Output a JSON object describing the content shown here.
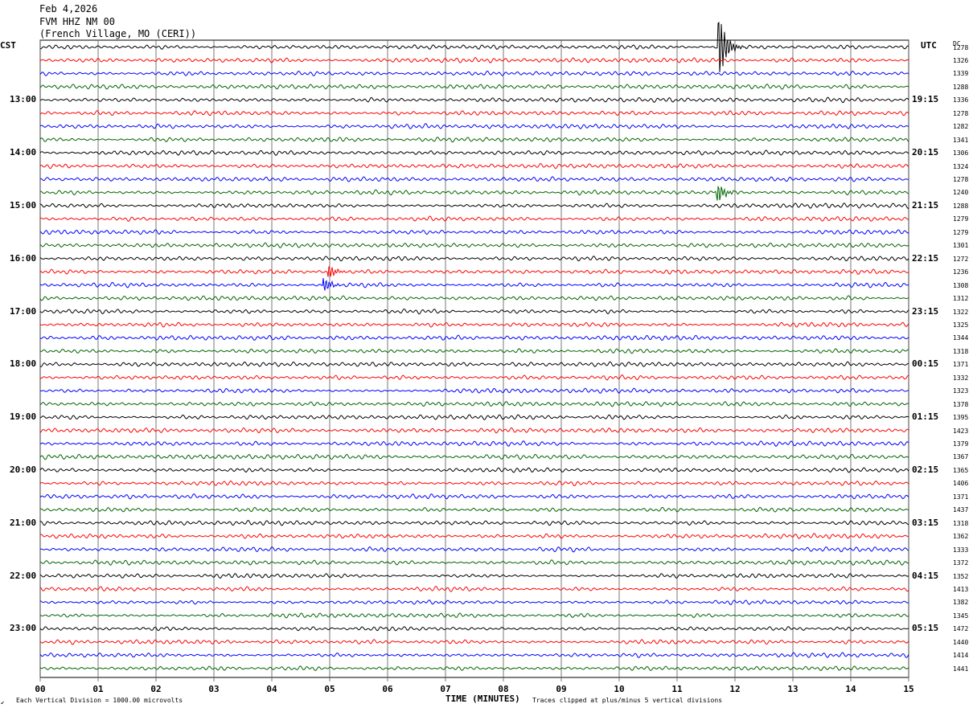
{
  "header": {
    "date": "Feb 4,2026",
    "station": "FVM HHZ NM 00",
    "location": "(French Village, MO (CERI))"
  },
  "left_label": "CST",
  "right_label": "UTC",
  "rms_header": "DC",
  "chart_data": {
    "type": "line",
    "title": "",
    "xlabel": "TIME (MINUTES)",
    "xlim": [
      0,
      15
    ],
    "x_ticks": [
      "00",
      "01",
      "02",
      "03",
      "04",
      "05",
      "06",
      "07",
      "08",
      "09",
      "10",
      "11",
      "12",
      "13",
      "14",
      "15"
    ],
    "trace_count": 48,
    "trace_colors": [
      "#000000",
      "#ff0000",
      "#0000ff",
      "#006400"
    ],
    "cst_hour_labels": [
      "13:00",
      "14:00",
      "15:00",
      "16:00",
      "17:00",
      "18:00",
      "19:00",
      "20:00",
      "21:00",
      "22:00",
      "23:00"
    ],
    "utc_hour_labels": [
      "19:15",
      "20:15",
      "21:15",
      "22:15",
      "23:15",
      "00:15",
      "01:15",
      "02:15",
      "03:15",
      "04:15",
      "05:15"
    ],
    "trace_dc_values": [
      "1278",
      "1326",
      "1339",
      "1288",
      "1336",
      "1278",
      "1282",
      "1341",
      "1306",
      "1324",
      "1278",
      "1240",
      "1288",
      "1279",
      "1279",
      "1301",
      "1272",
      "1236",
      "1308",
      "1312",
      "1322",
      "1325",
      "1344",
      "1318",
      "1371",
      "1332",
      "1323",
      "1378",
      "1395",
      "1423",
      "1379",
      "1367",
      "1365",
      "1406",
      "1371",
      "1437",
      "1318",
      "1362",
      "1333",
      "1372",
      "1352",
      "1413",
      "1382",
      "1345",
      "1472",
      "1440",
      "1414",
      "1441"
    ],
    "events": [
      {
        "trace": 0,
        "minute": 11.72,
        "amplitude": 5
      },
      {
        "trace": 11,
        "minute": 11.7,
        "amplitude": 1.4
      },
      {
        "trace": 17,
        "minute": 4.98,
        "amplitude": 1.0
      },
      {
        "trace": 18,
        "minute": 4.9,
        "amplitude": 1.0
      }
    ]
  },
  "footer": {
    "scale_note": "Each Vertical Division = 1000.00 microvolts",
    "clip_note": "Traces clipped at plus/minus 5 vertical divisions"
  }
}
